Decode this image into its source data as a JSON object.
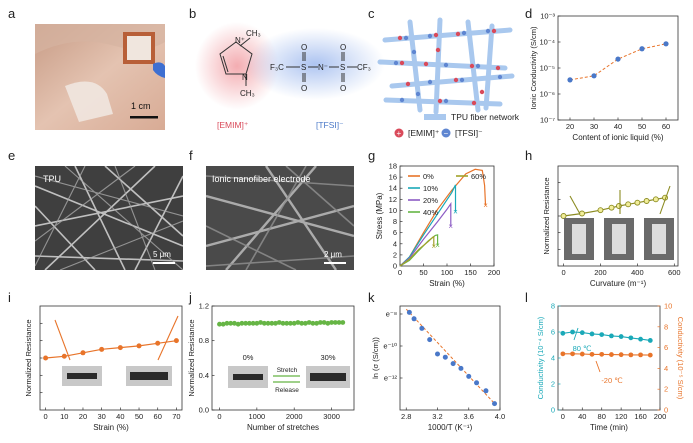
{
  "panels": {
    "a": "a",
    "b": "b",
    "c": "c",
    "d": "d",
    "e": "e",
    "f": "f",
    "g": "g",
    "h": "h",
    "i": "i",
    "j": "j",
    "k": "k",
    "l": "l"
  },
  "photo_a": {
    "scale_label": "1 cm"
  },
  "molecule_b": {
    "cation_label": "[EMIM]⁺",
    "anion_label": "[TFSI]⁻",
    "cation_atoms": {
      "n_plus": "N⁺",
      "n": "N",
      "ch3_top": "CH₃",
      "ch3_bottom": "CH₃"
    },
    "anion_atoms": {
      "f3c": "F₃C",
      "s1": "S",
      "n_minus": "N⁻",
      "s2": "S",
      "cf3": "CF₃",
      "o": "O"
    }
  },
  "schematic_c": {
    "fiber_label": "TPU fiber network",
    "cation_label": "[EMIM]⁺",
    "anion_label": "[TFSI]⁻",
    "plus_symbol": "+",
    "minus_symbol": "−"
  },
  "sem_e": {
    "label": "TPU",
    "scale_label": "5 μm"
  },
  "sem_f": {
    "label": "Ionic nanofiber electrode",
    "scale_label": "2 μm"
  },
  "colors": {
    "orange": "#e8742a",
    "blue_marker": "#4a78c8",
    "olive": "#8c8c23",
    "green": "#66b545",
    "teal": "#1aa9b8",
    "red_ion": "#d94a5a",
    "blue_ion": "#5f86d1"
  },
  "chart_data": [
    {
      "id": "d",
      "type": "scatter",
      "x": [
        20,
        30,
        40,
        50,
        60
      ],
      "values": [
        3.5e-06,
        5e-06,
        2.2e-05,
        5.5e-05,
        8.5e-05
      ],
      "xlabel": "Content of ionic liquid (%)",
      "ylabel": "Ionic Conductivity (S/cm)",
      "xlim": [
        15,
        65
      ],
      "ylim_log": [
        -7,
        -3
      ],
      "xticks": [
        "20",
        "30",
        "40",
        "50",
        "60"
      ],
      "yticks": [
        "10⁻⁷",
        "10⁻⁶",
        "10⁻⁵",
        "10⁻⁴",
        "10⁻³"
      ],
      "log_y": true
    },
    {
      "id": "g",
      "type": "line",
      "xlabel": "Strain (%)",
      "ylabel": "Stress (MPa)",
      "xlim": [
        0,
        200
      ],
      "ylim": [
        0,
        18
      ],
      "xticks": [
        "0",
        "50",
        "100",
        "150",
        "200"
      ],
      "yticks": [
        "0",
        "2",
        "4",
        "6",
        "8",
        "10",
        "12",
        "14",
        "16",
        "18"
      ],
      "series": [
        {
          "name": "0%",
          "color": "#e8742a",
          "x": [
            0,
            20,
            50,
            80,
            110,
            140,
            160,
            175,
            180,
            182
          ],
          "y": [
            0,
            1.6,
            6,
            10.2,
            13.6,
            16.6,
            17.4,
            17.2,
            14.5,
            11
          ]
        },
        {
          "name": "10%",
          "color": "#1aa9b8",
          "x": [
            0,
            20,
            50,
            80,
            110,
            118,
            118
          ],
          "y": [
            0,
            1.6,
            5.6,
            9.4,
            13.2,
            14.6,
            9.8
          ]
        },
        {
          "name": "20%",
          "color": "#8c5cc4",
          "x": [
            0,
            20,
            50,
            80,
            100,
            108,
            108
          ],
          "y": [
            0,
            1.4,
            4.8,
            8,
            10.2,
            11.2,
            7.2
          ]
        },
        {
          "name": "40%",
          "color": "#66b545",
          "x": [
            0,
            20,
            40,
            60,
            75,
            80,
            80
          ],
          "y": [
            0,
            1,
            2.8,
            4.5,
            5.5,
            5.6,
            3.8
          ]
        },
        {
          "name": "60%",
          "color": "#a2a12a",
          "x": [
            0,
            20,
            40,
            60,
            70,
            72,
            72
          ],
          "y": [
            0,
            1.2,
            3,
            4.4,
            5.2,
            5.3,
            3.6
          ]
        }
      ]
    },
    {
      "id": "h",
      "type": "line",
      "x": [
        0,
        100,
        200,
        260,
        300,
        350,
        400,
        450,
        500,
        550
      ],
      "values": [
        1.0,
        1.03,
        1.07,
        1.1,
        1.12,
        1.14,
        1.16,
        1.18,
        1.2,
        1.22
      ],
      "xlabel": "Curvature (m⁻¹)",
      "ylabel": "Normalized Resistance",
      "xlim": [
        -30,
        620
      ],
      "ylim": [
        0.4,
        1.6
      ],
      "xticks": [
        "0",
        "200",
        "400",
        "600"
      ]
    },
    {
      "id": "i",
      "type": "line",
      "x": [
        0,
        10,
        20,
        30,
        40,
        50,
        60,
        70
      ],
      "values": [
        1.0,
        1.02,
        1.06,
        1.1,
        1.12,
        1.14,
        1.17,
        1.2
      ],
      "xlabel": "Strain (%)",
      "ylabel": "Normalized Resistance",
      "xlim": [
        -3,
        73
      ],
      "ylim": [
        0.4,
        1.6
      ],
      "xticks": [
        "0",
        "10",
        "20",
        "30",
        "40",
        "50",
        "60",
        "70"
      ]
    },
    {
      "id": "j",
      "type": "scatter",
      "x": [
        0,
        100,
        200,
        300,
        400,
        500,
        600,
        700,
        800,
        900,
        1000,
        1100,
        1200,
        1300,
        1400,
        1500,
        1600,
        1700,
        1800,
        1900,
        2000,
        2100,
        2200,
        2300,
        2400,
        2500,
        2600,
        2700,
        2800,
        2900,
        3000,
        3100,
        3200,
        3300
      ],
      "values": [
        0.99,
        0.99,
        1.0,
        1.0,
        1.0,
        0.99,
        1.0,
        1.0,
        1.0,
        1.0,
        1.0,
        1.01,
        1.0,
        1.0,
        1.0,
        1.0,
        1.01,
        1.0,
        1.0,
        1.0,
        1.0,
        1.01,
        1.0,
        1.0,
        1.01,
        1.0,
        1.0,
        1.01,
        1.01,
        1.0,
        1.01,
        1.01,
        1.01,
        1.01
      ],
      "xlabel": "Number of stretches",
      "ylabel": "Normalized Resistance",
      "xlim": [
        -200,
        3600
      ],
      "ylim": [
        0,
        1.2
      ],
      "xticks": [
        "0",
        "1000",
        "2000",
        "3000"
      ],
      "yticks": [
        "0.0",
        "0.4",
        "0.8",
        "1.2"
      ],
      "inset": {
        "left": "0%",
        "right": "30%",
        "forward": "Stretch",
        "back": "Release"
      }
    },
    {
      "id": "k",
      "type": "scatter",
      "x": [
        2.84,
        2.9,
        3.0,
        3.1,
        3.2,
        3.3,
        3.4,
        3.5,
        3.6,
        3.7,
        3.82,
        3.93
      ],
      "values": [
        -7.9,
        -8.3,
        -8.9,
        -9.6,
        -10.5,
        -10.7,
        -11.1,
        -11.4,
        -11.9,
        -12.3,
        -12.8,
        -13.6
      ],
      "xlabel": "1000/T (K⁻¹)",
      "ylabel": "ln (σ (S/cm))",
      "xlim": [
        2.72,
        4.0
      ],
      "ylim": [
        -14,
        -7.5
      ],
      "xticks": [
        "2.8",
        "3.2",
        "3.6",
        "4.0"
      ],
      "yticks": [
        "e⁻¹²",
        "e⁻¹⁰",
        "e⁻⁸"
      ],
      "ytick_values": [
        -12,
        -10,
        -8
      ],
      "fit": [
        [
          2.8,
          -7.7
        ],
        [
          3.95,
          -13.7
        ]
      ]
    },
    {
      "id": "l",
      "type": "line",
      "xlabel": "Time (min)",
      "ylabel_left": "Conductivity (10⁻⁴ S/cm)",
      "ylabel_right": "Conductivity (10⁻⁵ S/cm)",
      "xlim": [
        -10,
        200
      ],
      "ylim_left": [
        0,
        8
      ],
      "ylim_right": [
        0,
        10
      ],
      "xticks": [
        "0",
        "40",
        "80",
        "120",
        "160",
        "200"
      ],
      "yticks_left": [
        "0",
        "2",
        "4",
        "6",
        "8"
      ],
      "yticks_right": [
        "0",
        "2",
        "4",
        "6",
        "8",
        "10"
      ],
      "series": [
        {
          "name": "80 ℃",
          "axis": "left",
          "color": "#1aa9b8",
          "x": [
            0,
            20,
            40,
            60,
            80,
            100,
            120,
            140,
            160,
            180
          ],
          "y": [
            5.9,
            6.0,
            5.95,
            5.85,
            5.8,
            5.7,
            5.65,
            5.55,
            5.45,
            5.35
          ]
        },
        {
          "name": "-20 ℃",
          "axis": "right",
          "color": "#e8742a",
          "x": [
            0,
            20,
            40,
            60,
            80,
            100,
            120,
            140,
            160,
            180
          ],
          "y": [
            5.4,
            5.4,
            5.38,
            5.35,
            5.35,
            5.33,
            5.32,
            5.3,
            5.3,
            5.28
          ]
        }
      ]
    }
  ]
}
